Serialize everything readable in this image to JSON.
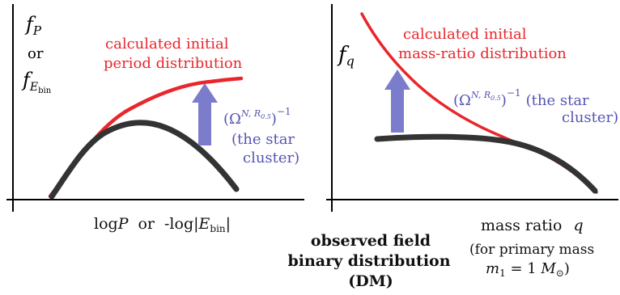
{
  "colors": {
    "observed_curve": "#333333",
    "initial_curve": "#e8262b",
    "arrow": "#7c7ccc",
    "annotation_text": "#5454b4",
    "axes": "#000000"
  },
  "left_panel": {
    "y_label_main": "f",
    "y_label_sub": "P",
    "y_label_or": "or",
    "y_label_alt": "f",
    "y_label_alt_sub": "E",
    "y_label_alt_sub2": "bin",
    "x_label_log": "log",
    "x_label_p": "P",
    "x_label_or": "or",
    "x_label_minus_log": "-log|",
    "x_label_e": "E",
    "x_label_bin": "bin",
    "x_label_close": "|",
    "curve_label_line1": "calculated  initial",
    "curve_label_line2": "period  distribution",
    "annotation_omega": "(Ω",
    "annotation_sup": "N, R",
    "annotation_sup_sub": "0.5",
    "annotation_close": ")",
    "annotation_exp": "−1",
    "annotation_line2": "(the star",
    "annotation_line3": "cluster)"
  },
  "right_panel": {
    "y_label_main": "f",
    "y_label_sub": "q",
    "curve_label_line1": "calculated  initial",
    "curve_label_line2": "mass-ratio  distribution",
    "annotation_omega": "(Ω",
    "annotation_sup": "N, R",
    "annotation_sup_sub": "0.5",
    "annotation_close": ")",
    "annotation_exp": "−1",
    "annotation_tail": "(the star",
    "annotation_line2": "cluster)",
    "x_label": "mass  ratio",
    "x_label_q": "q",
    "note_line1": "(for  primary  mass",
    "note_m": "m",
    "note_m_sub": "1",
    "note_eq": " = 1 ",
    "note_M": "M",
    "note_sun": "⊙",
    "note_close": ")"
  },
  "center_caption": {
    "line1": "observed  field",
    "line2": "binary  distribution",
    "line3": "(DM)"
  }
}
